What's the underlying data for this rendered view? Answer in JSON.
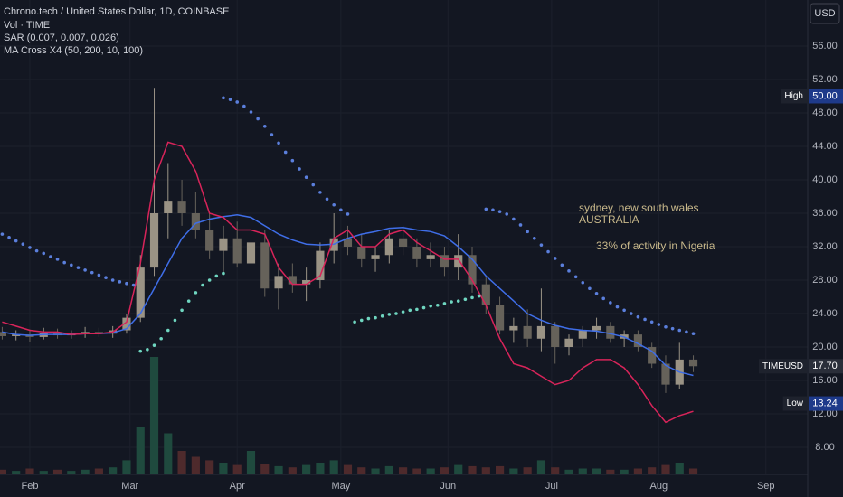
{
  "header": {
    "title": "Chrono.tech / United States Dollar, 1D, COINBASE",
    "indicators": [
      "Vol · TIME",
      "SAR (0.007, 0.007, 0.026)",
      "MA Cross X4 (50, 200, 10, 100)"
    ],
    "currency": "USD"
  },
  "annotations": [
    "sydney, new south wales",
    "AUSTRALIA",
    "33% of activity in Nigeria"
  ],
  "chart_data": {
    "type": "candlestick",
    "x": [
      0,
      4,
      8,
      12,
      16,
      20,
      24,
      28,
      32,
      36,
      40,
      44,
      48,
      52,
      56,
      60,
      64,
      68,
      72,
      76,
      80,
      84,
      88,
      92,
      96,
      100,
      104,
      108,
      112,
      116,
      120,
      124,
      128,
      132,
      136,
      140,
      144,
      148,
      152,
      156,
      160,
      164,
      168,
      172,
      176,
      180,
      184,
      188,
      192,
      196,
      200
    ],
    "open": [
      21.8,
      21.3,
      21.5,
      21.2,
      21.7,
      21.4,
      21.6,
      21.8,
      21.6,
      22.0,
      23.5,
      29.5,
      36.0,
      37.5,
      36.0,
      34.0,
      31.5,
      33.0,
      30.0,
      32.5,
      27.0,
      28.5,
      27.5,
      28.0,
      31.5,
      33.0,
      32.0,
      30.5,
      31.0,
      33.0,
      32.0,
      30.5,
      31.0,
      29.5,
      31.0,
      27.5,
      25.0,
      22.0,
      22.5,
      21.0,
      22.5,
      20.0,
      21.0,
      22.0,
      22.5,
      21.0,
      21.5,
      20.0,
      18.0,
      15.5,
      18.5
    ],
    "high": [
      22.4,
      22.0,
      22.1,
      22.3,
      22.2,
      22.0,
      22.4,
      22.3,
      22.5,
      24.0,
      31.0,
      51.0,
      42.0,
      40.0,
      38.5,
      36.0,
      34.5,
      35.0,
      36.5,
      34.0,
      30.0,
      30.0,
      29.5,
      32.5,
      36.0,
      34.5,
      33.5,
      32.0,
      34.0,
      34.5,
      33.0,
      32.5,
      32.0,
      33.5,
      32.0,
      28.5,
      26.0,
      23.5,
      24.5,
      27.0,
      23.0,
      21.5,
      22.5,
      23.5,
      23.0,
      22.0,
      22.0,
      20.5,
      19.0,
      20.5,
      19.0
    ],
    "low": [
      20.9,
      20.8,
      20.6,
      20.9,
      21.0,
      21.0,
      21.1,
      21.2,
      21.1,
      21.6,
      23.0,
      28.5,
      33.0,
      34.5,
      33.0,
      30.5,
      29.0,
      29.5,
      27.5,
      26.0,
      24.5,
      26.5,
      25.5,
      27.0,
      30.0,
      31.0,
      29.5,
      29.0,
      30.0,
      31.0,
      29.5,
      29.5,
      28.5,
      28.0,
      26.5,
      24.0,
      21.5,
      20.5,
      20.0,
      19.5,
      18.0,
      19.0,
      20.0,
      21.0,
      20.5,
      20.0,
      19.5,
      17.5,
      14.5,
      15.0,
      17.0
    ],
    "close": [
      21.3,
      21.5,
      21.2,
      21.7,
      21.4,
      21.6,
      21.8,
      21.6,
      22.0,
      23.5,
      29.5,
      36.0,
      37.5,
      36.0,
      34.0,
      31.5,
      33.0,
      30.0,
      32.5,
      27.0,
      28.5,
      27.5,
      28.0,
      31.5,
      33.0,
      32.0,
      30.5,
      31.0,
      33.0,
      32.0,
      30.5,
      31.0,
      29.5,
      31.0,
      27.5,
      25.0,
      22.0,
      22.5,
      21.0,
      22.5,
      20.0,
      21.0,
      22.0,
      22.5,
      21.0,
      21.5,
      20.0,
      18.0,
      15.5,
      18.5,
      17.7
    ],
    "volume": [
      4,
      3,
      5,
      3,
      4,
      3,
      4,
      5,
      6,
      12,
      40,
      100,
      35,
      20,
      15,
      12,
      10,
      8,
      20,
      9,
      7,
      6,
      8,
      10,
      12,
      8,
      6,
      5,
      7,
      6,
      5,
      5,
      6,
      8,
      7,
      6,
      7,
      5,
      6,
      12,
      6,
      4,
      5,
      5,
      4,
      4,
      5,
      6,
      8,
      10,
      5
    ],
    "volume_lim": [
      0,
      100
    ],
    "up_color": "#9a9385",
    "down_color": "#66625a",
    "volume_up_color": "#1f4a3e",
    "volume_down_color": "#4e2a2c",
    "lines": [
      {
        "color": "#3f6ee8",
        "values": [
          21.8,
          21.5,
          21.4,
          21.5,
          21.5,
          21.5,
          21.6,
          21.6,
          21.7,
          22.2,
          24,
          27,
          30,
          33,
          34.8,
          35.3,
          35.6,
          35.8,
          35.5,
          34.5,
          33.5,
          32.8,
          32.3,
          32.2,
          32.3,
          33,
          33.5,
          33.8,
          34.2,
          34.3,
          34,
          33.8,
          33.3,
          32,
          30.5,
          28.5,
          27,
          25.5,
          24,
          23.2,
          22.6,
          22.2,
          22,
          21.9,
          21.6,
          21.2,
          20.4,
          19.5,
          17.8,
          17,
          16.6
        ]
      },
      {
        "color": "#d8245a",
        "values": [
          23,
          22.5,
          22,
          21.8,
          21.8,
          21.5,
          21.6,
          21.6,
          21.8,
          23,
          30,
          40,
          44.5,
          44,
          41,
          36,
          35.5,
          34,
          34,
          33.5,
          29.5,
          27.5,
          27.5,
          28.5,
          33,
          34,
          32,
          32,
          33.5,
          34,
          32.5,
          31.5,
          30.5,
          30.5,
          28,
          25,
          21,
          18,
          17.5,
          16.5,
          15.5,
          16,
          17.5,
          18.5,
          18.5,
          17.5,
          15.5,
          13,
          11,
          11.8,
          12.3
        ]
      }
    ],
    "sar": [
      {
        "color": "#5b7fdc",
        "x": [
          0,
          2,
          4,
          6,
          8,
          10,
          12,
          14,
          16,
          18,
          20,
          22,
          24,
          26,
          28,
          30,
          32,
          34,
          36,
          38
        ],
        "values": [
          33.5,
          33.1,
          32.7,
          32.3,
          31.9,
          31.5,
          31.2,
          30.8,
          30.5,
          30.1,
          29.8,
          29.5,
          29.2,
          28.9,
          28.6,
          28.3,
          28.0,
          27.8,
          27.6,
          27.4
        ]
      },
      {
        "color": "#6fd6c0",
        "x": [
          40,
          42,
          44,
          46,
          48,
          50,
          52,
          54,
          56,
          58,
          60,
          62,
          64
        ],
        "values": [
          19.5,
          19.7,
          20.2,
          21.0,
          22.0,
          23.2,
          24.4,
          25.5,
          26.5,
          27.4,
          28.0,
          28.5,
          28.8
        ]
      },
      {
        "color": "#5b7fdc",
        "x": [
          64,
          66,
          68,
          70,
          72,
          74,
          76,
          78,
          80,
          82,
          84,
          86,
          88,
          90,
          92,
          94,
          96,
          98,
          100
        ],
        "values": [
          49.8,
          49.6,
          49.3,
          48.8,
          48.1,
          47.3,
          46.4,
          45.4,
          44.4,
          43.3,
          42.3,
          41.3,
          40.3,
          39.4,
          38.5,
          37.7,
          37.0,
          36.4,
          35.9
        ]
      },
      {
        "color": "#6fd6c0",
        "x": [
          102,
          104,
          106,
          108,
          110,
          112,
          114,
          116,
          118,
          120,
          122,
          124,
          126,
          128,
          130,
          132,
          134,
          136,
          138
        ],
        "values": [
          23.0,
          23.2,
          23.4,
          23.5,
          23.7,
          23.9,
          24.0,
          24.2,
          24.4,
          24.5,
          24.7,
          24.9,
          25.0,
          25.2,
          25.4,
          25.5,
          25.7,
          25.9,
          26.1
        ]
      },
      {
        "color": "#5b7fdc",
        "x": [
          140,
          142,
          144,
          146,
          148,
          150,
          152,
          154,
          156,
          158,
          160,
          162,
          164,
          166,
          168,
          170,
          172,
          174,
          176,
          178,
          180,
          182,
          184,
          186,
          188,
          190,
          192,
          194,
          196,
          198,
          200
        ],
        "values": [
          36.5,
          36.4,
          36.2,
          35.9,
          35.3,
          34.6,
          33.8,
          33.0,
          32.2,
          31.4,
          30.6,
          29.8,
          29.1,
          28.4,
          27.7,
          27.0,
          26.4,
          25.8,
          25.3,
          24.8,
          24.4,
          24.0,
          23.6,
          23.3,
          23.0,
          22.7,
          22.4,
          22.2,
          22.0,
          21.8,
          21.6
        ]
      }
    ],
    "xlim": [
      -0.63,
      233.1
    ],
    "xticks": [
      {
        "value": 8,
        "label": "Feb"
      },
      {
        "value": 37,
        "label": "Mar"
      },
      {
        "value": 68,
        "label": "Apr"
      },
      {
        "value": 98,
        "label": "May"
      },
      {
        "value": 129,
        "label": "Jun"
      },
      {
        "value": 159,
        "label": "Jul"
      },
      {
        "value": 190,
        "label": "Aug"
      },
      {
        "value": 221,
        "label": "Sep"
      }
    ],
    "ylim": [
      4.76,
      61.51
    ],
    "yticks": [
      {
        "value": 8,
        "label": "8.00"
      },
      {
        "value": 12,
        "label": "12.00"
      },
      {
        "value": 16,
        "label": "16.00"
      },
      {
        "value": 20,
        "label": "20.00"
      },
      {
        "value": 24,
        "label": "24.00"
      },
      {
        "value": 28,
        "label": "28.00"
      },
      {
        "value": 32,
        "label": "32.00"
      },
      {
        "value": 36,
        "label": "36.00"
      },
      {
        "value": 40,
        "label": "40.00"
      },
      {
        "value": 44,
        "label": "44.00"
      },
      {
        "value": 48,
        "label": "48.00"
      },
      {
        "value": 52,
        "label": "52.00"
      },
      {
        "value": 56,
        "label": "56.00"
      }
    ],
    "grid": true,
    "markers": [
      {
        "name": "High",
        "value": 50,
        "value_label": "50.00",
        "color": "#1e3a8a"
      },
      {
        "name": "TIMEUSD",
        "value": 17.7,
        "value_label": "17.70",
        "color": "#2a2e39"
      },
      {
        "name": "Low",
        "value": 13.24,
        "value_label": "13.24",
        "color": "#1e3a8a"
      }
    ]
  }
}
